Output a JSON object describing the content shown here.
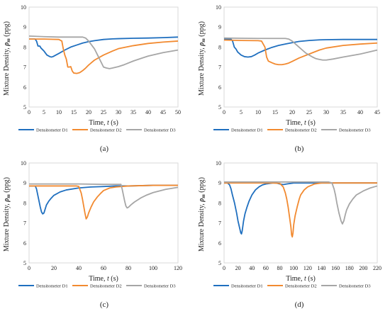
{
  "colors": {
    "D1": "#1f6fbf",
    "D2": "#f28a30",
    "D3": "#a6a6a6",
    "axis": "#d9d9d9"
  },
  "chart_data": [
    {
      "type": "line",
      "panel_label": "(a)",
      "ylabel_prefix": "Mixture Density, ",
      "ylabel_symbol": "ρ",
      "ylabel_sub": "m",
      "ylabel_unit": " (ppg)",
      "xlabel_prefix": "Time, ",
      "xlabel_symbol": "t",
      "xlabel_unit": " (s)",
      "xlim": [
        0,
        50
      ],
      "ylim": [
        5,
        10
      ],
      "xticks": [
        "0",
        "5",
        "10",
        "15",
        "20",
        "25",
        "30",
        "35",
        "40",
        "45",
        "50"
      ],
      "yticks": [
        "5",
        "6",
        "7",
        "8",
        "9",
        "10"
      ],
      "series": [
        {
          "name": "Densitometer D1",
          "color": "#1f6fbf",
          "x": [
            0,
            2,
            2.5,
            3,
            3.6,
            4,
            5,
            6,
            7,
            7.5,
            8,
            9,
            10,
            12,
            14,
            16,
            18,
            20,
            22,
            25,
            28,
            30,
            35,
            40,
            45,
            50
          ],
          "y": [
            8.4,
            8.4,
            8.3,
            8.05,
            8.05,
            7.95,
            7.8,
            7.6,
            7.52,
            7.5,
            7.52,
            7.6,
            7.68,
            7.85,
            8.0,
            8.1,
            8.2,
            8.27,
            8.32,
            8.38,
            8.41,
            8.42,
            8.44,
            8.45,
            8.47,
            8.5
          ]
        },
        {
          "name": "Densitometer D2",
          "color": "#f28a30",
          "x": [
            0,
            5,
            10,
            11,
            11.5,
            12,
            12.5,
            13,
            13.5,
            14,
            14.5,
            15,
            16,
            17,
            18,
            19,
            20,
            22,
            25,
            28,
            30,
            35,
            40,
            45,
            50
          ],
          "y": [
            8.4,
            8.4,
            8.38,
            8.3,
            7.9,
            7.6,
            7.4,
            7.0,
            7.0,
            7.02,
            6.8,
            6.7,
            6.68,
            6.72,
            6.82,
            6.95,
            7.1,
            7.35,
            7.6,
            7.8,
            7.92,
            8.07,
            8.18,
            8.25,
            8.3
          ]
        },
        {
          "name": "Densitometer D3",
          "color": "#a6a6a6",
          "x": [
            0,
            5,
            10,
            15,
            18,
            19,
            20,
            21,
            22,
            23,
            24,
            25,
            26,
            27,
            28,
            30,
            32,
            35,
            38,
            40,
            45,
            50
          ],
          "y": [
            8.55,
            8.52,
            8.5,
            8.5,
            8.5,
            8.45,
            8.3,
            8.1,
            7.9,
            7.6,
            7.3,
            7.0,
            6.95,
            6.92,
            6.95,
            7.02,
            7.12,
            7.3,
            7.45,
            7.55,
            7.72,
            7.85
          ]
        }
      ]
    },
    {
      "type": "line",
      "panel_label": "(b)",
      "ylabel_prefix": "Mixture Density, ",
      "ylabel_symbol": "ρ",
      "ylabel_sub": "m",
      "ylabel_unit": " (ppg)",
      "xlabel_prefix": "Time, ",
      "xlabel_symbol": "t",
      "xlabel_unit": " (s)",
      "xlim": [
        0,
        45
      ],
      "ylim": [
        5,
        10
      ],
      "xticks": [
        "0",
        "5",
        "10",
        "15",
        "20",
        "25",
        "30",
        "35",
        "40",
        "45"
      ],
      "yticks": [
        "5",
        "6",
        "7",
        "8",
        "9",
        "10"
      ],
      "series": [
        {
          "name": "Densitometer D1",
          "color": "#1f6fbf",
          "x": [
            0,
            2,
            2.5,
            3,
            3.5,
            4,
            5,
            6,
            7,
            8,
            9,
            10,
            12,
            14,
            16,
            18,
            20,
            22,
            25,
            28,
            30,
            35,
            40,
            45
          ],
          "y": [
            8.4,
            8.4,
            8.3,
            8.0,
            7.9,
            7.75,
            7.6,
            7.52,
            7.5,
            7.52,
            7.6,
            7.7,
            7.85,
            7.98,
            8.08,
            8.15,
            8.22,
            8.28,
            8.33,
            8.36,
            8.37,
            8.38,
            8.38,
            8.38
          ]
        },
        {
          "name": "Densitometer D2",
          "color": "#f28a30",
          "x": [
            0,
            5,
            10,
            11,
            12,
            12.5,
            13,
            14,
            15,
            16,
            17,
            18,
            19,
            20,
            22,
            25,
            28,
            30,
            35,
            40,
            45
          ],
          "y": [
            8.35,
            8.33,
            8.32,
            8.3,
            8.0,
            7.5,
            7.3,
            7.22,
            7.15,
            7.12,
            7.12,
            7.15,
            7.2,
            7.28,
            7.45,
            7.65,
            7.85,
            7.95,
            8.08,
            8.15,
            8.2
          ]
        },
        {
          "name": "Densitometer D3",
          "color": "#a6a6a6",
          "x": [
            0,
            5,
            10,
            15,
            18,
            19,
            20,
            21,
            22,
            23,
            24,
            25,
            26,
            27,
            28,
            29,
            30,
            32,
            35,
            40,
            45
          ],
          "y": [
            8.45,
            8.44,
            8.43,
            8.43,
            8.43,
            8.4,
            8.3,
            8.15,
            8.0,
            7.85,
            7.7,
            7.6,
            7.5,
            7.42,
            7.38,
            7.35,
            7.35,
            7.4,
            7.5,
            7.65,
            7.85
          ]
        }
      ]
    },
    {
      "type": "line",
      "panel_label": "(c)",
      "ylabel_prefix": "Mixture Density, ",
      "ylabel_symbol": "ρ",
      "ylabel_sub": "m",
      "ylabel_unit": " (ppg)",
      "xlabel_prefix": "Time, ",
      "xlabel_symbol": "t",
      "xlabel_unit": " (s)",
      "xlim": [
        0,
        120
      ],
      "ylim": [
        5,
        10
      ],
      "xticks": [
        "0",
        "20",
        "40",
        "60",
        "80",
        "100",
        "120"
      ],
      "yticks": [
        "5",
        "6",
        "7",
        "8",
        "9",
        "10"
      ],
      "series": [
        {
          "name": "Densitometer D1",
          "color": "#1f6fbf",
          "x": [
            0,
            5,
            6,
            7,
            8,
            9,
            10,
            11,
            12,
            13,
            14,
            16,
            18,
            20,
            25,
            30,
            40,
            50,
            60,
            70,
            80,
            100,
            120
          ],
          "y": [
            8.85,
            8.85,
            8.7,
            8.4,
            8.1,
            7.8,
            7.55,
            7.45,
            7.5,
            7.7,
            7.9,
            8.1,
            8.25,
            8.38,
            8.55,
            8.65,
            8.75,
            8.8,
            8.82,
            8.85,
            8.85,
            8.88,
            8.88
          ]
        },
        {
          "name": "Densitometer D2",
          "color": "#f28a30",
          "x": [
            0,
            20,
            38,
            40,
            42,
            43,
            44,
            45,
            46,
            47,
            48,
            50,
            52,
            55,
            58,
            60,
            65,
            70,
            80,
            100,
            120
          ],
          "y": [
            8.85,
            8.85,
            8.85,
            8.83,
            8.5,
            8.2,
            7.85,
            7.5,
            7.2,
            7.3,
            7.5,
            7.8,
            8.05,
            8.3,
            8.5,
            8.62,
            8.75,
            8.8,
            8.85,
            8.88,
            8.88
          ]
        },
        {
          "name": "Densitometer D3",
          "color": "#a6a6a6",
          "x": [
            0,
            20,
            40,
            60,
            70,
            74,
            75,
            76,
            77,
            78,
            79,
            80,
            82,
            85,
            90,
            95,
            100,
            110,
            120
          ],
          "y": [
            8.95,
            8.95,
            8.95,
            8.93,
            8.93,
            8.93,
            8.7,
            8.4,
            8.1,
            7.85,
            7.75,
            7.78,
            7.9,
            8.05,
            8.25,
            8.4,
            8.52,
            8.68,
            8.78
          ]
        }
      ]
    },
    {
      "type": "line",
      "panel_label": "(d)",
      "ylabel_prefix": "Mixture Density, ",
      "ylabel_symbol": "ρ",
      "ylabel_sub": "m",
      "ylabel_unit": " (ppg)",
      "xlabel_prefix": "Time, ",
      "xlabel_symbol": "t",
      "xlabel_unit": " (s)",
      "xlim": [
        0,
        220
      ],
      "ylim": [
        5,
        10
      ],
      "xticks": [
        "0",
        "20",
        "40",
        "60",
        "80",
        "100",
        "120",
        "140",
        "160",
        "180",
        "200",
        "220"
      ],
      "yticks": [
        "5",
        "6",
        "7",
        "8",
        "9",
        "10"
      ],
      "series": [
        {
          "name": "Densitometer D1",
          "color": "#1f6fbf",
          "x": [
            0,
            5,
            8,
            10,
            12,
            15,
            18,
            20,
            22,
            24,
            25,
            26,
            27,
            28,
            30,
            33,
            36,
            40,
            45,
            50,
            55,
            60,
            70,
            75,
            80,
            85,
            90,
            100,
            120,
            150,
            180,
            220
          ],
          "y": [
            9.0,
            9.0,
            8.9,
            8.7,
            8.4,
            8.0,
            7.5,
            7.1,
            6.8,
            6.5,
            6.45,
            6.6,
            6.85,
            7.1,
            7.45,
            7.8,
            8.1,
            8.4,
            8.65,
            8.8,
            8.9,
            8.95,
            9.0,
            9.0,
            8.95,
            8.92,
            8.95,
            9.0,
            9.0,
            9.0,
            9.0,
            9.0
          ]
        },
        {
          "name": "Densitometer D2",
          "color": "#f28a30",
          "x": [
            0,
            40,
            70,
            80,
            85,
            88,
            90,
            92,
            94,
            96,
            97,
            98,
            99,
            100,
            102,
            105,
            108,
            110,
            115,
            120,
            130,
            140,
            150,
            160,
            180,
            220
          ],
          "y": [
            9.0,
            9.0,
            9.0,
            8.98,
            8.8,
            8.5,
            8.2,
            7.8,
            7.3,
            6.8,
            6.4,
            6.3,
            6.5,
            6.9,
            7.35,
            7.8,
            8.2,
            8.4,
            8.65,
            8.8,
            8.95,
            9.0,
            9.0,
            9.0,
            9.0,
            9.0
          ]
        },
        {
          "name": "Densitometer D3",
          "color": "#a6a6a6",
          "x": [
            0,
            40,
            80,
            120,
            150,
            155,
            158,
            160,
            162,
            165,
            168,
            170,
            172,
            174,
            176,
            180,
            185,
            190,
            200,
            210,
            220
          ],
          "y": [
            9.05,
            9.05,
            9.05,
            9.05,
            9.05,
            9.0,
            8.7,
            8.4,
            8.0,
            7.5,
            7.1,
            6.95,
            7.1,
            7.4,
            7.65,
            7.95,
            8.2,
            8.4,
            8.6,
            8.75,
            8.85
          ]
        }
      ]
    }
  ]
}
